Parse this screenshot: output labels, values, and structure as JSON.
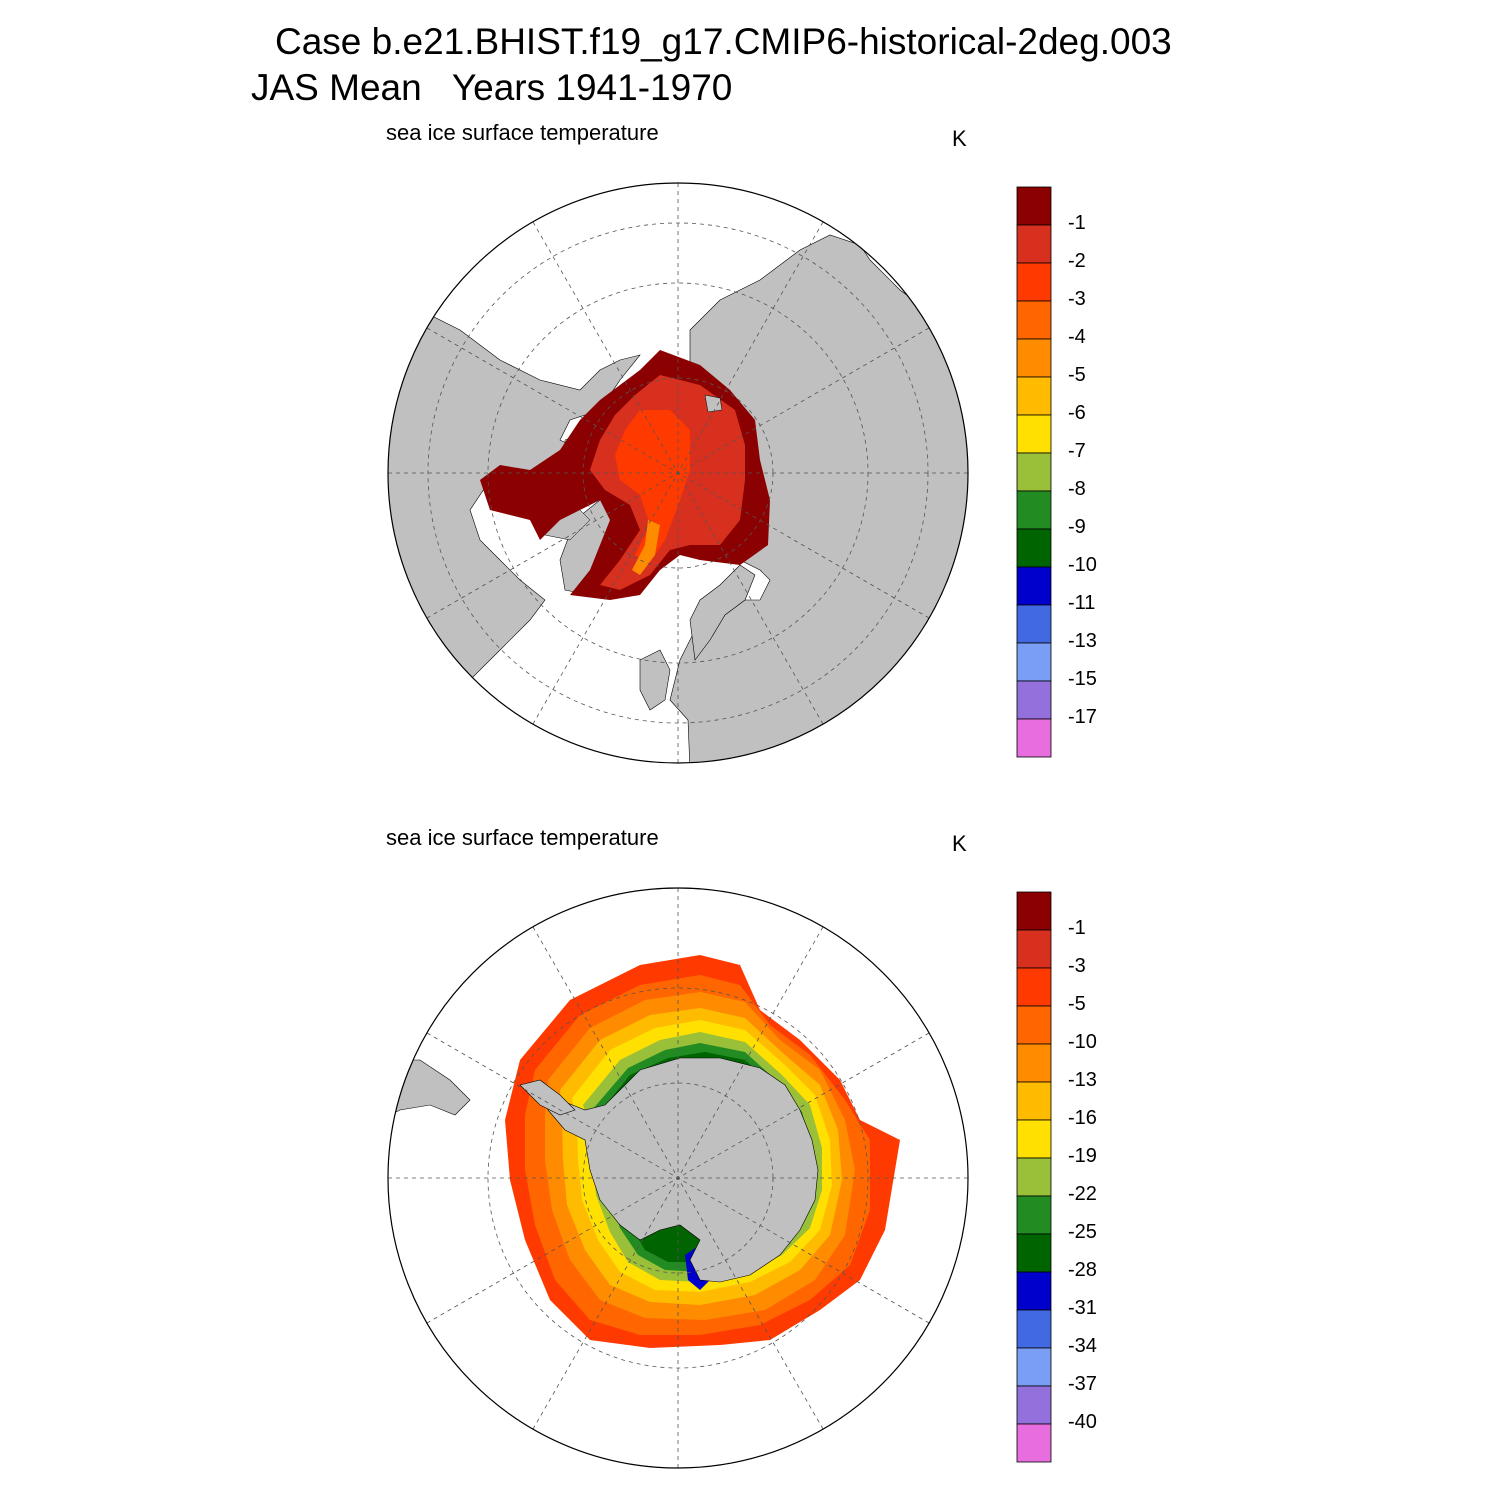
{
  "title": {
    "line1": "Case b.e21.BHIST.f19_g17.CMIP6-historical-2deg.003",
    "line2": "JAS Mean   Years 1941-1970"
  },
  "panels": [
    {
      "id": "north",
      "hemisphere": "NH",
      "title": "sea ice surface temperature",
      "units": "K",
      "colorbar": {
        "labels": [
          "-1",
          "-2",
          "-3",
          "-4",
          "-5",
          "-6",
          "-7",
          "-8",
          "-9",
          "-10",
          "-11",
          "-13",
          "-15",
          "-17"
        ],
        "colors": [
          "#8b0000",
          "#d7301f",
          "#ff3a00",
          "#ff6600",
          "#ff8c00",
          "#ffbb00",
          "#ffe000",
          "#9abf38",
          "#228b22",
          "#006400",
          "#0000cd",
          "#4169e1",
          "#7b9ef5",
          "#9370db",
          "#e86ee0"
        ]
      }
    },
    {
      "id": "south",
      "hemisphere": "SH",
      "title": "sea ice surface temperature",
      "units": "K",
      "colorbar": {
        "labels": [
          "-1",
          "-3",
          "-5",
          "-10",
          "-13",
          "-16",
          "-19",
          "-22",
          "-25",
          "-28",
          "-31",
          "-34",
          "-37",
          "-40"
        ],
        "colors": [
          "#8b0000",
          "#d7301f",
          "#ff3a00",
          "#ff6600",
          "#ff8c00",
          "#ffbb00",
          "#ffe000",
          "#9abf38",
          "#228b22",
          "#006400",
          "#0000cd",
          "#4169e1",
          "#7b9ef5",
          "#9370db",
          "#e86ee0"
        ]
      }
    }
  ]
}
